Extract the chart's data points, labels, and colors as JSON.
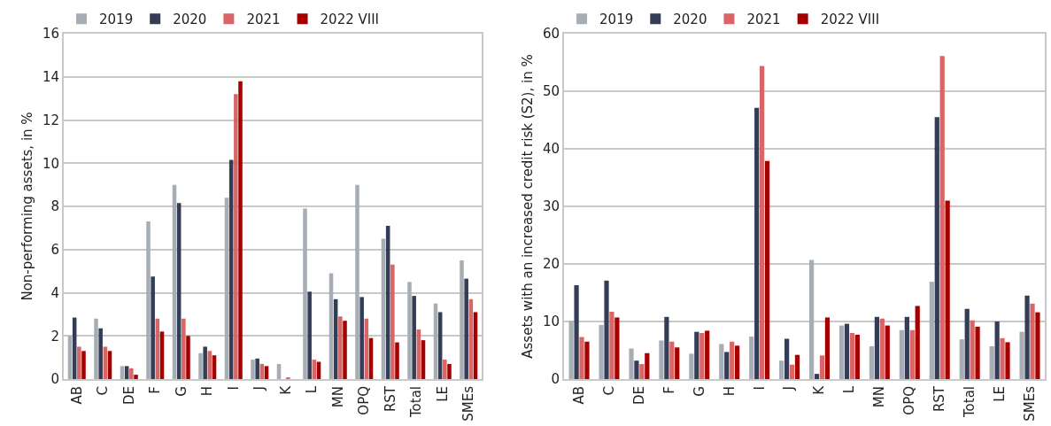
{
  "chart_data": [
    {
      "type": "bar",
      "ylabel": "Non-performing assets, in %",
      "categories": [
        "AB",
        "C",
        "DE",
        "F",
        "G",
        "H",
        "I",
        "J",
        "K",
        "L",
        "MN",
        "OPQ",
        "RST",
        "Total",
        "LE",
        "SMEs"
      ],
      "ylim": [
        0,
        16
      ],
      "yticks": [
        0,
        2,
        4,
        6,
        8,
        10,
        12,
        14,
        16
      ],
      "grid": "y",
      "legend": "top left",
      "series": [
        {
          "name": "2019",
          "color": "#a7adb4",
          "values": [
            2.0,
            2.8,
            0.6,
            7.3,
            9.0,
            1.2,
            8.4,
            0.9,
            0.7,
            7.9,
            4.9,
            9.0,
            6.5,
            4.5,
            3.5,
            5.5
          ]
        },
        {
          "name": "2020",
          "color": "#333d55",
          "values": [
            2.85,
            2.35,
            0.6,
            4.75,
            8.15,
            1.5,
            10.15,
            0.95,
            null,
            4.05,
            3.7,
            3.8,
            7.1,
            3.85,
            3.1,
            4.65
          ]
        },
        {
          "name": "2021",
          "color": "#d96566",
          "values": [
            1.5,
            1.5,
            0.5,
            2.8,
            2.8,
            1.3,
            13.2,
            0.7,
            0.05,
            0.9,
            2.9,
            2.8,
            5.3,
            2.3,
            0.9,
            3.7
          ]
        },
        {
          "name": "2022 VIII",
          "color": "#a50000",
          "values": [
            1.3,
            1.3,
            0.2,
            2.2,
            2.0,
            1.1,
            13.8,
            0.6,
            null,
            0.8,
            2.7,
            1.9,
            1.7,
            1.8,
            0.7,
            3.1
          ]
        }
      ]
    },
    {
      "type": "bar",
      "ylabel": "Assets with an increased credit risk (S2), in %",
      "categories": [
        "AB",
        "C",
        "DE",
        "F",
        "G",
        "H",
        "I",
        "J",
        "K",
        "L",
        "MN",
        "OPQ",
        "RST",
        "Total",
        "LE",
        "SMEs"
      ],
      "ylim": [
        0,
        60
      ],
      "yticks": [
        0,
        10,
        20,
        30,
        40,
        50,
        60
      ],
      "grid": "y",
      "legend": "top left",
      "series": [
        {
          "name": "2019",
          "color": "#a7adb4",
          "values": [
            10.1,
            9.4,
            5.3,
            6.7,
            4.4,
            6.1,
            7.4,
            3.2,
            20.7,
            9.3,
            5.7,
            8.5,
            16.9,
            6.9,
            5.7,
            8.2
          ]
        },
        {
          "name": "2020",
          "color": "#333d55",
          "values": [
            16.3,
            17.1,
            3.2,
            10.8,
            8.2,
            4.7,
            47.1,
            7.0,
            0.9,
            9.6,
            10.8,
            10.8,
            45.5,
            12.2,
            10.0,
            14.5
          ]
        },
        {
          "name": "2021",
          "color": "#d96566",
          "values": [
            7.3,
            11.7,
            2.6,
            6.5,
            8.0,
            6.5,
            54.4,
            2.5,
            4.1,
            8.0,
            10.5,
            8.5,
            56.1,
            10.2,
            7.1,
            13.1
          ]
        },
        {
          "name": "2022 VIII",
          "color": "#a50000",
          "values": [
            6.5,
            10.7,
            4.5,
            5.5,
            8.4,
            5.8,
            37.9,
            4.2,
            10.7,
            7.7,
            9.3,
            12.7,
            31.0,
            9.1,
            6.4,
            11.6
          ]
        }
      ]
    }
  ]
}
